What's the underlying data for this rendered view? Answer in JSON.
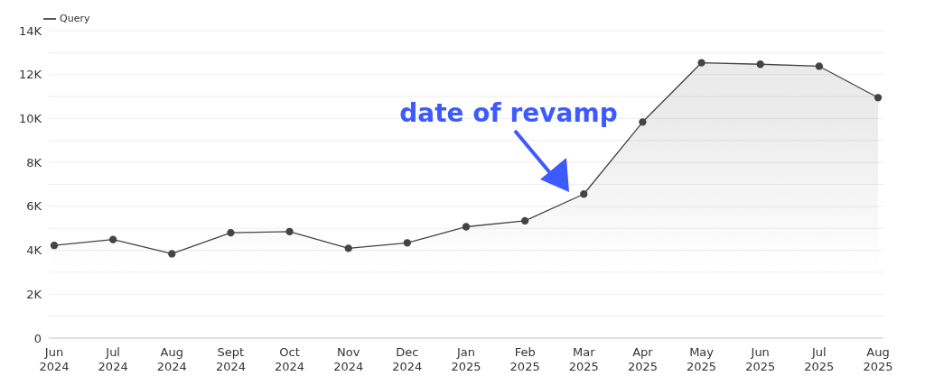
{
  "chart_data": {
    "type": "area",
    "categories": [
      "Jun 2024",
      "Jul 2024",
      "Aug 2024",
      "Sept 2024",
      "Oct 2024",
      "Nov 2024",
      "Dec 2024",
      "Jan 2025",
      "Feb 2025",
      "Mar 2025",
      "Apr 2025",
      "May 2025",
      "Jun 2025",
      "Jul 2025",
      "Aug 2025"
    ],
    "series": [
      {
        "name": "Query",
        "color": "#444444",
        "values": [
          4220,
          4490,
          3840,
          4800,
          4850,
          4090,
          4340,
          5070,
          5340,
          6560,
          9840,
          12540,
          12470,
          12380,
          10950
        ]
      }
    ],
    "ylim": [
      0,
      14000
    ],
    "yticks": [
      0,
      {
        "value": 1000,
        "label": null
      },
      {
        "value": 2000,
        "label": "2K"
      },
      {
        "value": 3000,
        "label": null
      },
      {
        "value": 4000,
        "label": "4K"
      },
      {
        "value": 5000,
        "label": null
      },
      {
        "value": 6000,
        "label": "6K"
      },
      {
        "value": 7000,
        "label": null
      },
      {
        "value": 8000,
        "label": "8K"
      },
      {
        "value": 9000,
        "label": null
      },
      {
        "value": 10000,
        "label": "10K"
      },
      {
        "value": 11000,
        "label": null
      },
      {
        "value": 12000,
        "label": "12K"
      },
      {
        "value": 13000,
        "label": null
      },
      {
        "value": 14000,
        "label": "14K"
      }
    ],
    "annotations": [
      "date of revamp"
    ],
    "grid": "y",
    "legend": "top left",
    "marker": "circle",
    "line_style": "solid"
  }
}
